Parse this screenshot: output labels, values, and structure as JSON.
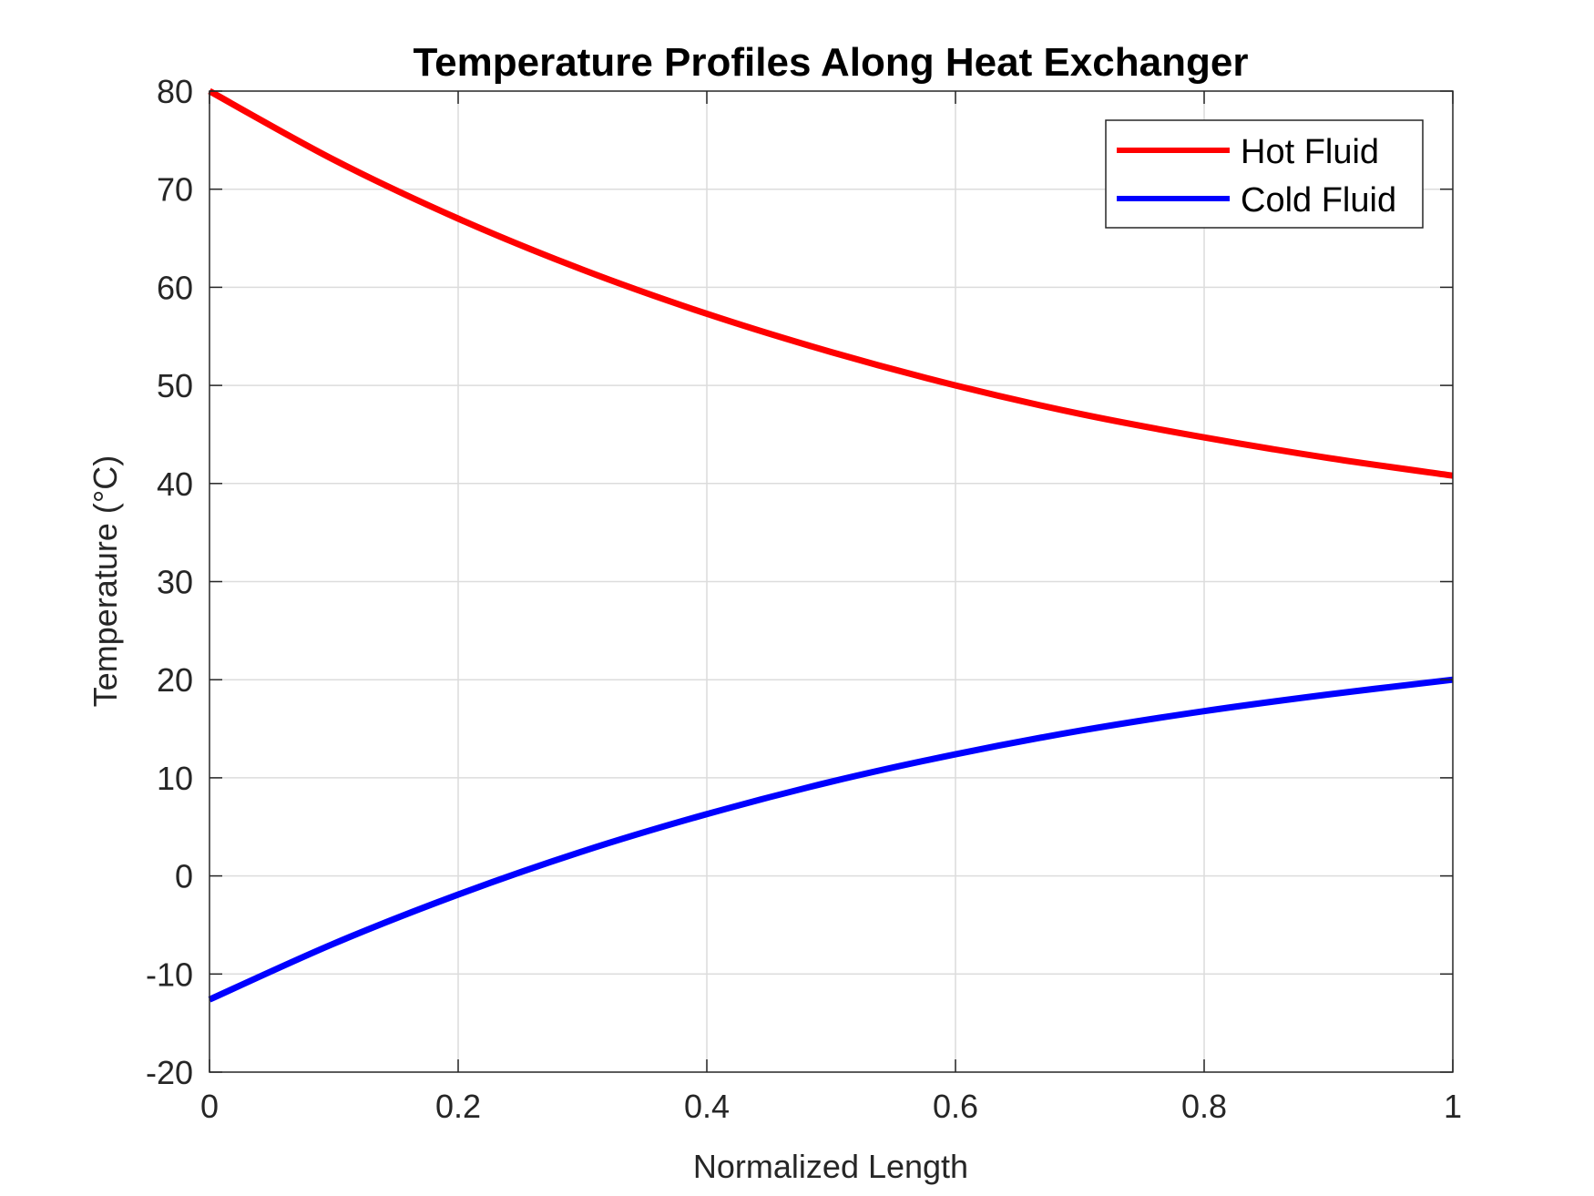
{
  "chart_data": {
    "type": "line",
    "title": "Temperature Profiles Along Heat Exchanger",
    "xlabel": "Normalized Length",
    "ylabel": "Temperature (°C)",
    "xlim": [
      0,
      1
    ],
    "ylim": [
      -20,
      80
    ],
    "xticks": [
      0,
      0.2,
      0.4,
      0.6,
      0.8,
      1
    ],
    "xtick_labels": [
      "0",
      "0.2",
      "0.4",
      "0.6",
      "0.8",
      "1"
    ],
    "yticks": [
      -20,
      -10,
      0,
      10,
      20,
      30,
      40,
      50,
      60,
      70,
      80
    ],
    "ytick_labels": [
      "-20",
      "-10",
      "0",
      "10",
      "20",
      "30",
      "40",
      "50",
      "60",
      "70",
      "80"
    ],
    "grid": true,
    "legend_position": "top-right",
    "x": [
      0,
      0.1,
      0.2,
      0.3,
      0.4,
      0.5,
      0.6,
      0.7,
      0.8,
      0.9,
      1.0
    ],
    "series": [
      {
        "name": "Hot Fluid",
        "color": "#ff0000",
        "values": [
          80,
          73.0,
          67.0,
          61.8,
          57.3,
          53.4,
          50.0,
          47.1,
          44.7,
          42.6,
          40.8
        ]
      },
      {
        "name": "Cold Fluid",
        "color": "#0000ff",
        "values": [
          -12.6,
          -6.9,
          -1.9,
          2.5,
          6.3,
          9.6,
          12.4,
          14.8,
          16.8,
          18.5,
          20.0
        ]
      }
    ]
  }
}
